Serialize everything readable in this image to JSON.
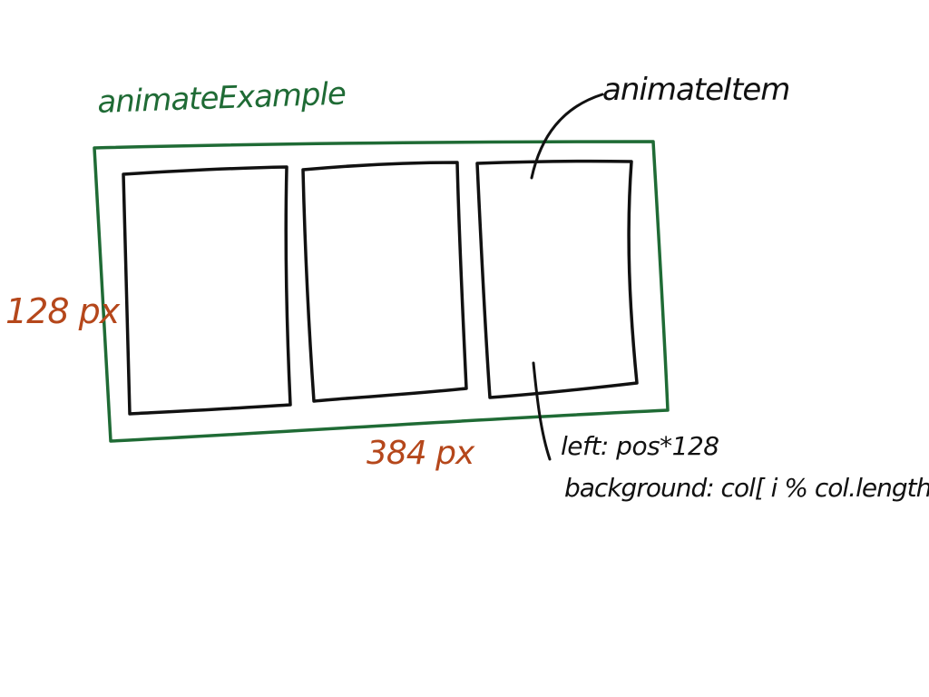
{
  "labels": {
    "container": "animateExample",
    "container_height": "128 px",
    "container_width": "384 px",
    "item": "animateItem",
    "left_rule": "left: pos*128",
    "background_rule": "background: col[ i % col.length]"
  },
  "items_count": 3,
  "colors": {
    "container_outline": "#1f6b35",
    "dimension_text": "#b5471b",
    "ink": "#111111",
    "paper": "#ffffff"
  }
}
